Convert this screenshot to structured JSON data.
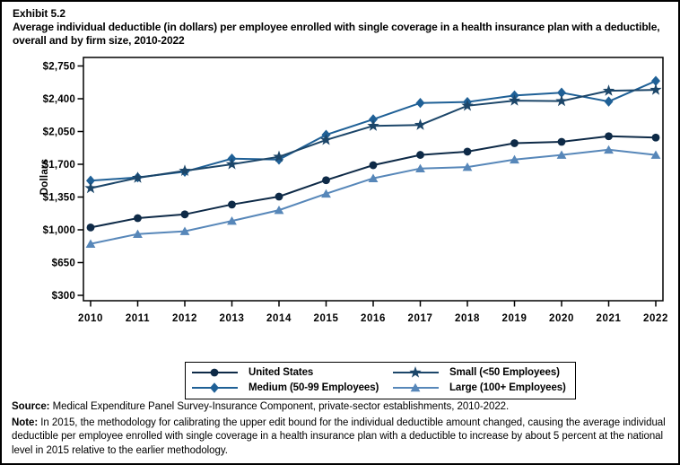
{
  "header": {
    "exhibit_label": "Exhibit 5.2",
    "title": "Average individual deductible (in dollars) per employee enrolled with single coverage in a health insurance plan with a deductible, overall and by firm size, 2010-2022"
  },
  "footer": {
    "source_label": "Source:",
    "source_text": " Medical Expenditure Panel Survey-Insurance Component, private-sector establishments, 2010-2022.",
    "note_label": "Note:",
    "note_text": " In 2015, the methodology for calibrating the upper edit bound for the individual deductible amount changed, causing the average individual deductible per employee enrolled with single coverage in a health insurance plan with a deductible to increase by about 5 percent at the national level in 2015 relative to the earlier methodology."
  },
  "chart_data": {
    "type": "line",
    "title": "Average individual deductible (in dollars) per employee enrolled with single coverage in a health insurance plan with a deductible, overall and by firm size, 2010-2022",
    "xlabel": "",
    "ylabel": "Dollars",
    "x": [
      2010,
      2011,
      2012,
      2013,
      2014,
      2015,
      2016,
      2017,
      2018,
      2019,
      2020,
      2021,
      2022
    ],
    "ylim": [
      300,
      2750
    ],
    "yticks": [
      300,
      650,
      1000,
      1350,
      1700,
      2050,
      2400,
      2750
    ],
    "y_tick_prefix": "$",
    "grid": false,
    "legend_position": "bottom",
    "series": [
      {
        "id": "united-states",
        "name": "United States",
        "marker": "circle",
        "color": "#0e2a47",
        "values": [
          1025,
          1125,
          1165,
          1270,
          1355,
          1530,
          1690,
          1800,
          1835,
          1925,
          1940,
          2000,
          1985
        ]
      },
      {
        "id": "small",
        "name": "Small (<50 Employees)",
        "marker": "star",
        "color": "#1c4669",
        "values": [
          1445,
          1555,
          1630,
          1700,
          1780,
          1960,
          2110,
          2120,
          2325,
          2380,
          2375,
          2485,
          2495
        ]
      },
      {
        "id": "medium",
        "name": "Medium (50-99 Employees)",
        "marker": "diamond",
        "color": "#1f6096",
        "values": [
          1525,
          1560,
          1620,
          1760,
          1750,
          2015,
          2180,
          2355,
          2365,
          2435,
          2465,
          2370,
          2590
        ]
      },
      {
        "id": "large",
        "name": "Large (100+ Employees)",
        "marker": "triangle",
        "color": "#5787b9",
        "values": [
          850,
          955,
          985,
          1095,
          1210,
          1385,
          1550,
          1655,
          1670,
          1750,
          1800,
          1855,
          1800
        ]
      }
    ]
  }
}
